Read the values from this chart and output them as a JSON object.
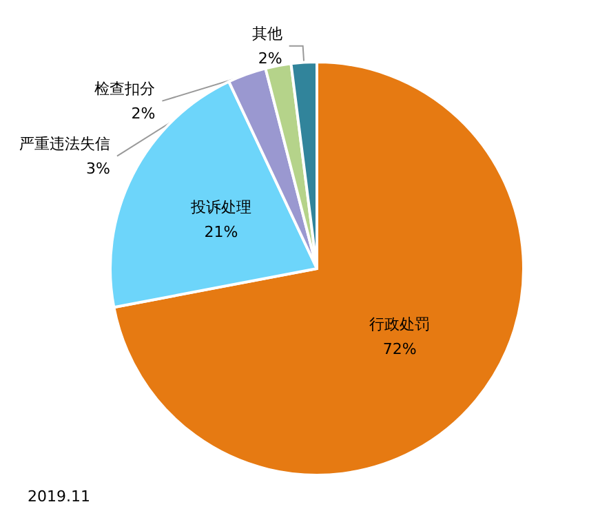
{
  "chart_data": {
    "type": "pie",
    "categories": [
      "行政处罚",
      "投诉处理",
      "严重违法失信",
      "检查扣分",
      "其他"
    ],
    "values": [
      72,
      21,
      3,
      2,
      2
    ],
    "value_labels": [
      "72%",
      "21%",
      "3%",
      "2%",
      "2%"
    ],
    "colors": [
      "#e67a12",
      "#6dd5fa",
      "#9a98d0",
      "#b5d38a",
      "#31849b"
    ],
    "legend": false,
    "annotations": [
      "2019.11"
    ]
  }
}
